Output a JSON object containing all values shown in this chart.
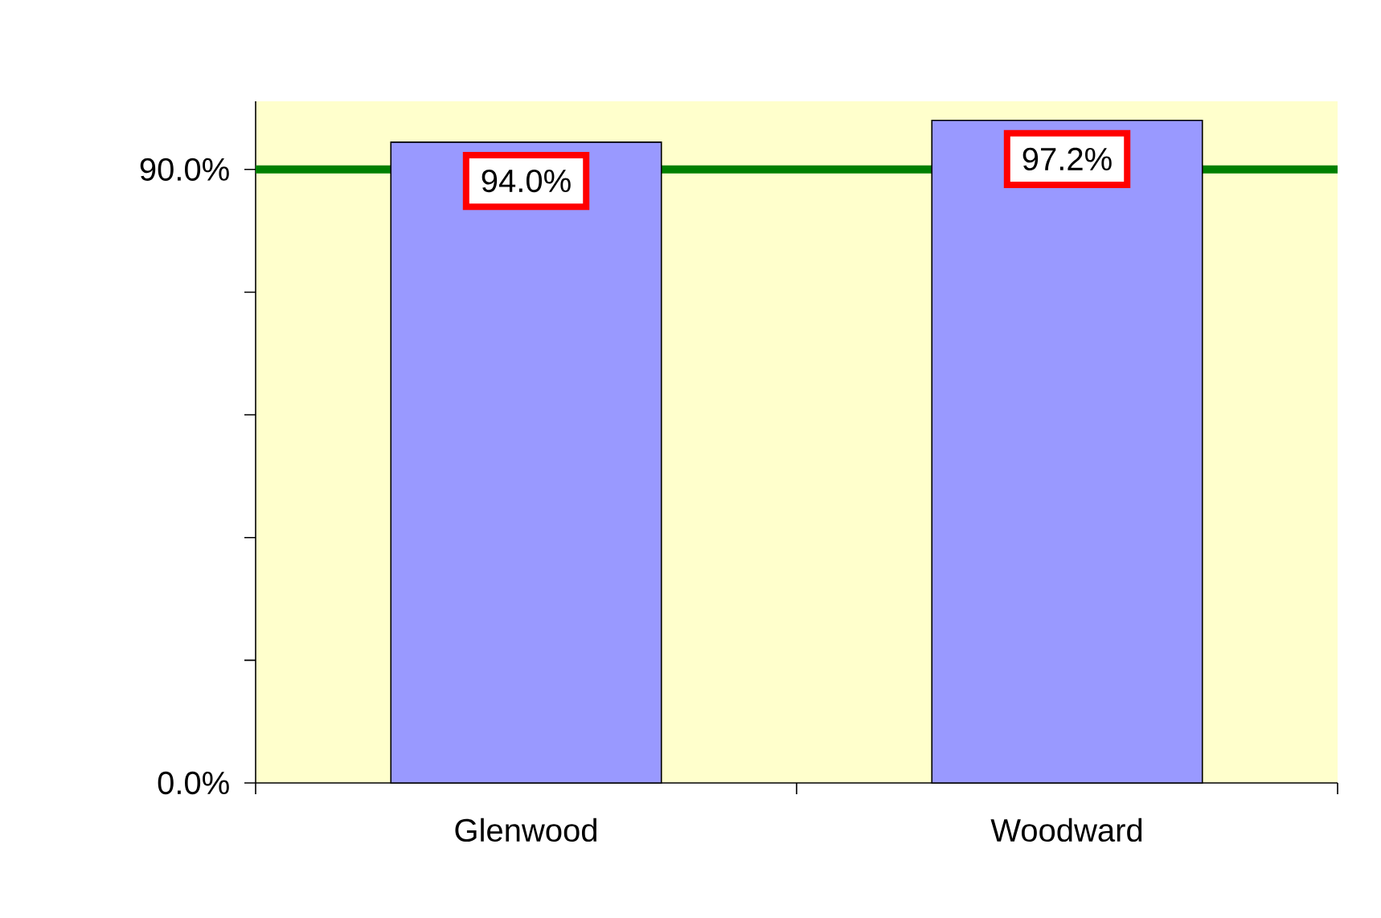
{
  "chart_data": {
    "type": "bar",
    "categories": [
      "Glenwood",
      "Woodward"
    ],
    "values": [
      94.0,
      97.2
    ],
    "color": "#9999ff",
    "value_labels": [
      "94.0%",
      "97.2%"
    ],
    "ylim": [
      0,
      100
    ],
    "yticks": [
      {
        "value": 0,
        "label": "0.0%"
      },
      {
        "value": 18,
        "label": null
      },
      {
        "value": 36,
        "label": null
      },
      {
        "value": 54,
        "label": null
      },
      {
        "value": 72,
        "label": null
      },
      {
        "value": 90,
        "label": "90.0%"
      }
    ],
    "ref_lines": [
      {
        "axis": "y",
        "value": 90,
        "color": "#008000"
      }
    ],
    "grid": false
  }
}
